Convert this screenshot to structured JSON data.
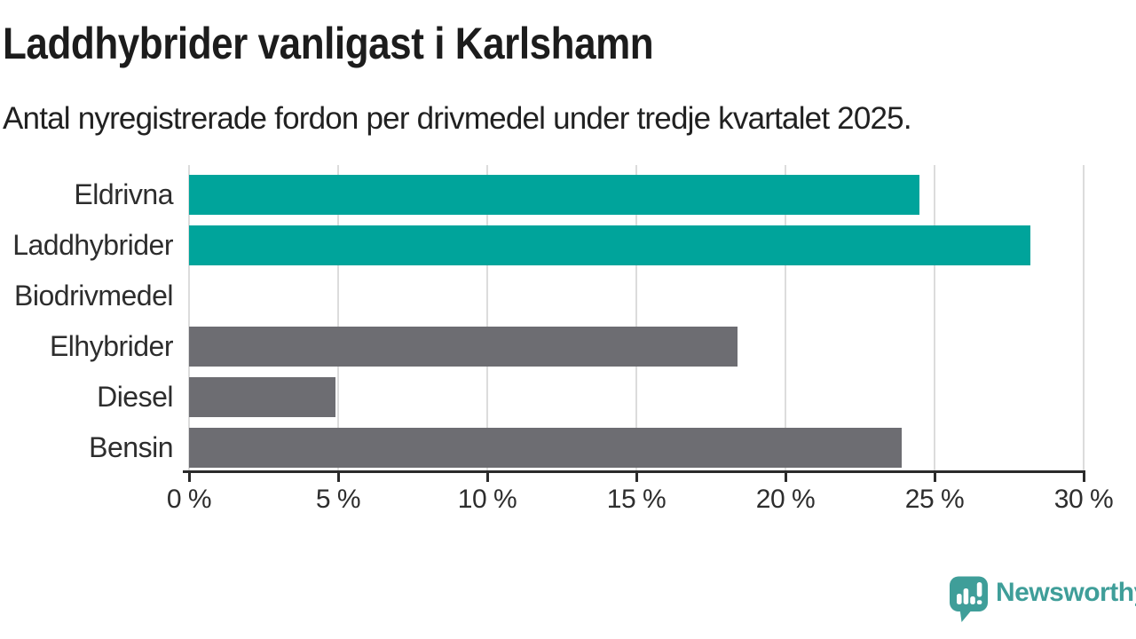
{
  "header": {
    "title": "Laddhybrider vanligast i Karlshamn",
    "subtitle": "Antal nyregistrerade fordon per drivmedel under tredje kvartalet 2025."
  },
  "chart_data": {
    "type": "bar",
    "orientation": "horizontal",
    "title": "Laddhybrider vanligast i Karlshamn",
    "subtitle": "Antal nyregistrerade fordon per drivmedel under tredje kvartalet 2025.",
    "categories": [
      "Eldrivna",
      "Laddhybrider",
      "Biodrivmedel",
      "Elhybrider",
      "Diesel",
      "Bensin"
    ],
    "values": [
      24.5,
      28.2,
      0,
      18.4,
      4.9,
      23.9
    ],
    "unit": "%",
    "bar_colors": [
      "#00a49b",
      "#00a49b",
      "#6d6d72",
      "#6d6d72",
      "#6d6d72",
      "#6d6d72"
    ],
    "highlight_color": "#00a49b",
    "default_color": "#6d6d72",
    "xlim": [
      0,
      30
    ],
    "x_ticks": [
      0,
      5,
      10,
      15,
      20,
      25,
      30
    ],
    "x_tick_labels": [
      "0 %",
      "5 %",
      "10 %",
      "15 %",
      "20 %",
      "25 %",
      "30 %"
    ],
    "grid": "vertical",
    "gridline_color": "#dcdcdc",
    "axis_color": "#2b2b2b",
    "label_color": "#2d2d2d",
    "legend": "none"
  },
  "logo": {
    "text": "Newsworthy",
    "color": "#3f9e99",
    "icon": "newsworthy-pin-barchart-icon"
  }
}
